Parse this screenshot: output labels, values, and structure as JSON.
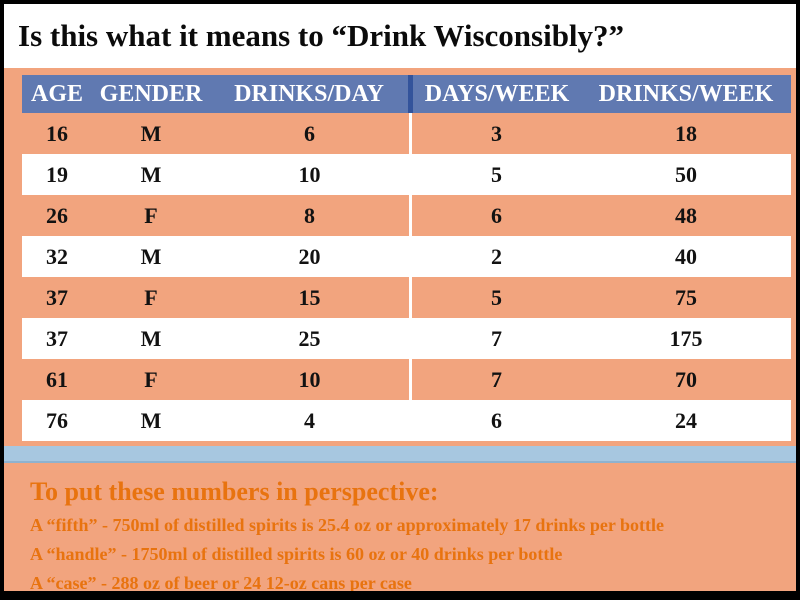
{
  "title": "Is this what it means to “Drink Wisconsibly?”",
  "chart_data": {
    "type": "table",
    "title": "Is this what it means to “Drink Wisconsibly?”",
    "columns": [
      "AGE",
      "GENDER",
      "DRINKS/DAY",
      "DAYS/WEEK",
      "DRINKS/WEEK"
    ],
    "rows": [
      [
        16,
        "M",
        6,
        3,
        18
      ],
      [
        19,
        "M",
        10,
        5,
        50
      ],
      [
        26,
        "F",
        8,
        6,
        48
      ],
      [
        32,
        "M",
        20,
        2,
        40
      ],
      [
        37,
        "F",
        15,
        5,
        75
      ],
      [
        37,
        "M",
        25,
        7,
        175
      ],
      [
        61,
        "F",
        10,
        7,
        70
      ],
      [
        76,
        "M",
        4,
        6,
        24
      ]
    ]
  },
  "footer": {
    "heading": "To put these numbers in perspective:",
    "lines": [
      "A “fifth” - 750ml of distilled spirits is 25.4 oz or approximately 17 drinks per bottle",
      "A “handle” - 1750ml of distilled spirits is 60 oz or 40 drinks per bottle",
      "A “case” - 288 oz of beer or 24 12-oz cans per case"
    ]
  },
  "colors": {
    "background": "#F2A47E",
    "table_header": "#6079B1",
    "table_header_divider": "#33539B",
    "row_alt": "#FFFFFF",
    "divider_bar": "#A7C7E0",
    "footer_text": "#E8730F",
    "title_text": "#0B0B0B",
    "border": "#000000"
  }
}
